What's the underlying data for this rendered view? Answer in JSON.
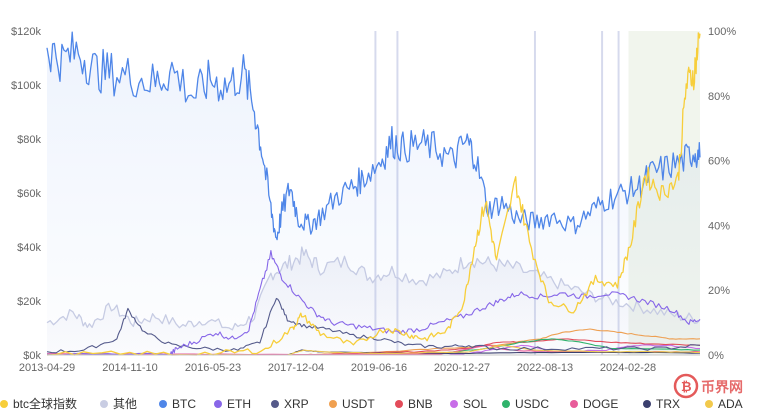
{
  "chart_data": {
    "type": "line",
    "x_ticks": [
      "2013-04-29",
      "2014-11-10",
      "2016-05-23",
      "2017-12-04",
      "2019-06-16",
      "2020-12-27",
      "2022-08-13",
      "2024-02-28"
    ],
    "y_left_ticks": [
      "$0k",
      "$20k",
      "$40k",
      "$60k",
      "$80k",
      "$100k",
      "$120k"
    ],
    "y_left_range": [
      0,
      120
    ],
    "y_right_ticks": [
      "0%",
      "20%",
      "40%",
      "60%",
      "80%",
      "100%"
    ],
    "y_right_range": [
      0,
      100
    ],
    "grid": false,
    "legend_position": "bottom",
    "x_years": [
      2013.33,
      2025.2
    ],
    "series": [
      {
        "name": "btc全球指数",
        "color": "#f7ce3a",
        "axis": "left",
        "points": [
          [
            2013.33,
            0.1
          ],
          [
            2015.0,
            0.3
          ],
          [
            2016.5,
            0.6
          ],
          [
            2017.3,
            2
          ],
          [
            2017.8,
            10
          ],
          [
            2017.96,
            15
          ],
          [
            2018.3,
            8
          ],
          [
            2018.9,
            3.5
          ],
          [
            2019.5,
            10
          ],
          [
            2019.9,
            7.5
          ],
          [
            2020.2,
            6
          ],
          [
            2020.6,
            9
          ],
          [
            2020.9,
            19
          ],
          [
            2021.1,
            40
          ],
          [
            2021.3,
            57
          ],
          [
            2021.5,
            35
          ],
          [
            2021.85,
            64
          ],
          [
            2022.1,
            42
          ],
          [
            2022.45,
            20
          ],
          [
            2022.9,
            16.5
          ],
          [
            2023.3,
            28
          ],
          [
            2023.7,
            26
          ],
          [
            2023.95,
            42
          ],
          [
            2024.2,
            67
          ],
          [
            2024.5,
            60
          ],
          [
            2024.8,
            65
          ],
          [
            2024.95,
            100
          ],
          [
            2025.1,
            105
          ],
          [
            2025.2,
            119
          ]
        ]
      },
      {
        "name": "其他",
        "color": "#c9cde3",
        "axis": "right",
        "points": [
          [
            2013.33,
            10
          ],
          [
            2013.8,
            13
          ],
          [
            2014.1,
            9
          ],
          [
            2014.5,
            15
          ],
          [
            2014.9,
            10
          ],
          [
            2015.3,
            12
          ],
          [
            2015.8,
            9
          ],
          [
            2016.2,
            11
          ],
          [
            2016.7,
            8
          ],
          [
            2017.1,
            12
          ],
          [
            2017.4,
            25
          ],
          [
            2017.7,
            28
          ],
          [
            2018.0,
            31
          ],
          [
            2018.3,
            27
          ],
          [
            2018.8,
            29
          ],
          [
            2019.2,
            24
          ],
          [
            2019.6,
            26
          ],
          [
            2020.1,
            23
          ],
          [
            2020.6,
            25
          ],
          [
            2021.0,
            30
          ],
          [
            2021.4,
            28
          ],
          [
            2021.8,
            27
          ],
          [
            2022.3,
            24
          ],
          [
            2022.8,
            21
          ],
          [
            2023.3,
            18
          ],
          [
            2023.8,
            16
          ],
          [
            2024.3,
            14
          ],
          [
            2024.8,
            12
          ],
          [
            2025.2,
            11
          ]
        ]
      },
      {
        "name": "BTC",
        "color": "#4f86e8",
        "axis": "right",
        "points": [
          [
            2013.33,
            95
          ],
          [
            2013.6,
            91
          ],
          [
            2013.9,
            94
          ],
          [
            2014.2,
            88
          ],
          [
            2014.5,
            87
          ],
          [
            2014.9,
            86
          ],
          [
            2015.3,
            84
          ],
          [
            2015.6,
            88
          ],
          [
            2016.0,
            80
          ],
          [
            2016.3,
            85
          ],
          [
            2016.6,
            83
          ],
          [
            2016.9,
            87
          ],
          [
            2017.1,
            76
          ],
          [
            2017.25,
            62
          ],
          [
            2017.4,
            45
          ],
          [
            2017.5,
            36
          ],
          [
            2017.6,
            44
          ],
          [
            2017.75,
            52
          ],
          [
            2017.9,
            42
          ],
          [
            2018.1,
            40
          ],
          [
            2018.3,
            43
          ],
          [
            2018.6,
            49
          ],
          [
            2018.9,
            52
          ],
          [
            2019.1,
            55
          ],
          [
            2019.4,
            60
          ],
          [
            2019.6,
            66
          ],
          [
            2019.8,
            64
          ],
          [
            2020.1,
            65
          ],
          [
            2020.4,
            64
          ],
          [
            2020.7,
            60
          ],
          [
            2020.95,
            66
          ],
          [
            2021.1,
            62
          ],
          [
            2021.35,
            45
          ],
          [
            2021.6,
            47
          ],
          [
            2021.9,
            42
          ],
          [
            2022.2,
            41
          ],
          [
            2022.5,
            43
          ],
          [
            2022.9,
            40
          ],
          [
            2023.2,
            44
          ],
          [
            2023.5,
            48
          ],
          [
            2023.8,
            50
          ],
          [
            2024.1,
            52
          ],
          [
            2024.3,
            56
          ],
          [
            2024.6,
            58
          ],
          [
            2024.9,
            60
          ],
          [
            2025.1,
            63
          ],
          [
            2025.2,
            61
          ]
        ]
      },
      {
        "name": "ETH",
        "color": "#8866e8",
        "axis": "right",
        "points": [
          [
            2013.33,
            0
          ],
          [
            2015.55,
            0
          ],
          [
            2015.7,
            2
          ],
          [
            2016.0,
            4
          ],
          [
            2016.4,
            7
          ],
          [
            2016.7,
            5
          ],
          [
            2017.0,
            8
          ],
          [
            2017.2,
            20
          ],
          [
            2017.4,
            31
          ],
          [
            2017.6,
            24
          ],
          [
            2017.9,
            18
          ],
          [
            2018.2,
            13
          ],
          [
            2018.5,
            10
          ],
          [
            2018.9,
            9
          ],
          [
            2019.3,
            8
          ],
          [
            2019.7,
            7
          ],
          [
            2020.1,
            8
          ],
          [
            2020.5,
            10
          ],
          [
            2020.9,
            12
          ],
          [
            2021.3,
            15
          ],
          [
            2021.6,
            17
          ],
          [
            2021.9,
            19
          ],
          [
            2022.3,
            18
          ],
          [
            2022.7,
            19
          ],
          [
            2023.1,
            18
          ],
          [
            2023.5,
            19
          ],
          [
            2023.9,
            18
          ],
          [
            2024.3,
            16
          ],
          [
            2024.7,
            14
          ],
          [
            2025.0,
            10
          ],
          [
            2025.2,
            11
          ]
        ]
      },
      {
        "name": "XRP",
        "color": "#555a8a",
        "axis": "right",
        "points": [
          [
            2013.33,
            1
          ],
          [
            2014.0,
            1.5
          ],
          [
            2014.6,
            5
          ],
          [
            2014.8,
            14
          ],
          [
            2015.1,
            7
          ],
          [
            2015.6,
            3
          ],
          [
            2016.2,
            2
          ],
          [
            2016.8,
            1.5
          ],
          [
            2017.2,
            4
          ],
          [
            2017.5,
            18
          ],
          [
            2017.7,
            11
          ],
          [
            2018.0,
            9
          ],
          [
            2018.4,
            8
          ],
          [
            2018.9,
            6
          ],
          [
            2019.4,
            5
          ],
          [
            2019.9,
            3
          ],
          [
            2020.5,
            2.5
          ],
          [
            2021.0,
            3
          ],
          [
            2021.5,
            2
          ],
          [
            2022.5,
            2
          ],
          [
            2023.5,
            2
          ],
          [
            2024.5,
            2
          ],
          [
            2025.2,
            3
          ]
        ]
      },
      {
        "name": "USDT",
        "color": "#f0a050",
        "axis": "right",
        "points": [
          [
            2013.33,
            0
          ],
          [
            2018.0,
            0
          ],
          [
            2018.5,
            0.5
          ],
          [
            2019.5,
            1
          ],
          [
            2020.5,
            2
          ],
          [
            2021.5,
            3
          ],
          [
            2022.3,
            5
          ],
          [
            2022.7,
            7
          ],
          [
            2023.2,
            8
          ],
          [
            2023.7,
            7
          ],
          [
            2024.2,
            6
          ],
          [
            2024.7,
            5
          ],
          [
            2025.2,
            5
          ]
        ]
      },
      {
        "name": "BNB",
        "color": "#e34c5a",
        "axis": "right",
        "points": [
          [
            2013.33,
            0
          ],
          [
            2018.0,
            0
          ],
          [
            2019.0,
            0.5
          ],
          [
            2020.0,
            1
          ],
          [
            2021.0,
            2
          ],
          [
            2021.5,
            4
          ],
          [
            2022.0,
            4
          ],
          [
            2022.7,
            5
          ],
          [
            2023.5,
            4
          ],
          [
            2024.2,
            3.5
          ],
          [
            2025.2,
            3
          ]
        ]
      },
      {
        "name": "SOL",
        "color": "#c86de8",
        "axis": "right",
        "points": [
          [
            2013.33,
            0
          ],
          [
            2020.5,
            0
          ],
          [
            2021.0,
            0.5
          ],
          [
            2021.6,
            2
          ],
          [
            2022.0,
            3
          ],
          [
            2022.6,
            1
          ],
          [
            2023.5,
            1.5
          ],
          [
            2024.0,
            3
          ],
          [
            2024.6,
            3
          ],
          [
            2025.2,
            2
          ]
        ]
      },
      {
        "name": "USDC",
        "color": "#2fb36b",
        "axis": "right",
        "points": [
          [
            2013.33,
            0
          ],
          [
            2019.5,
            0
          ],
          [
            2020.5,
            0.5
          ],
          [
            2021.3,
            2
          ],
          [
            2022.0,
            4
          ],
          [
            2022.5,
            5
          ],
          [
            2023.0,
            4
          ],
          [
            2023.6,
            2
          ],
          [
            2024.3,
            2
          ],
          [
            2025.2,
            1.5
          ]
        ]
      },
      {
        "name": "DOGE",
        "color": "#e85c9a",
        "axis": "right",
        "points": [
          [
            2013.33,
            0.5
          ],
          [
            2015.0,
            0.3
          ],
          [
            2017.0,
            0.2
          ],
          [
            2020.5,
            0.3
          ],
          [
            2021.35,
            3
          ],
          [
            2021.7,
            1.5
          ],
          [
            2022.5,
            1
          ],
          [
            2023.5,
            0.8
          ],
          [
            2024.5,
            1
          ],
          [
            2025.2,
            1
          ]
        ]
      },
      {
        "name": "TRX",
        "color": "#3b3f6e",
        "axis": "right",
        "points": [
          [
            2013.33,
            0
          ],
          [
            2017.7,
            0
          ],
          [
            2017.95,
            1.5
          ],
          [
            2018.3,
            1
          ],
          [
            2019.5,
            0.6
          ],
          [
            2021.0,
            0.5
          ],
          [
            2022.5,
            0.8
          ],
          [
            2024.0,
            0.8
          ],
          [
            2025.2,
            0.6
          ]
        ]
      },
      {
        "name": "ADA",
        "color": "#f2c94c",
        "axis": "right",
        "points": [
          [
            2013.33,
            0
          ],
          [
            2017.7,
            0
          ],
          [
            2018.0,
            1.5
          ],
          [
            2018.5,
            0.8
          ],
          [
            2019.5,
            0.5
          ],
          [
            2021.0,
            1
          ],
          [
            2021.6,
            3
          ],
          [
            2022.2,
            1.5
          ],
          [
            2023.5,
            1
          ],
          [
            2024.5,
            1
          ],
          [
            2025.2,
            0.8
          ]
        ]
      }
    ],
    "vertical_markers": [
      2019.3,
      2019.7,
      2022.2,
      2023.42,
      2023.72
    ],
    "highlight_span": [
      2023.9,
      2025.2
    ]
  },
  "legend": {
    "items": [
      {
        "label": "btc全球指数",
        "color": "#f7ce3a"
      },
      {
        "label": "其他",
        "color": "#c9cde3"
      },
      {
        "label": "BTC",
        "color": "#4f86e8"
      },
      {
        "label": "ETH",
        "color": "#8866e8"
      },
      {
        "label": "XRP",
        "color": "#555a8a"
      },
      {
        "label": "USDT",
        "color": "#f0a050"
      },
      {
        "label": "BNB",
        "color": "#e34c5a"
      },
      {
        "label": "SOL",
        "color": "#c86de8"
      },
      {
        "label": "USDC",
        "color": "#2fb36b"
      },
      {
        "label": "DOGE",
        "color": "#e85c9a"
      },
      {
        "label": "TRX",
        "color": "#3b3f6e"
      },
      {
        "label": "ADA",
        "color": "#f2c94c"
      }
    ]
  },
  "watermark": {
    "text": "币界网",
    "icon": "coin-logo-icon",
    "color": "#e45a5a"
  }
}
